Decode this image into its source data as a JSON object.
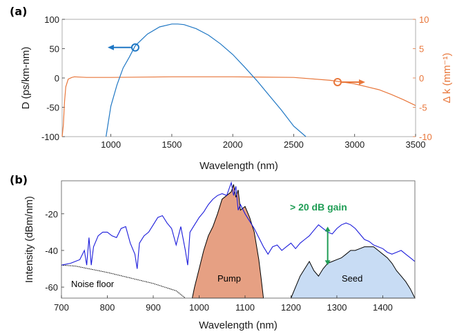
{
  "chart_data": [
    {
      "panel": "(a)",
      "type": "line",
      "xlabel": "Wavelength (nm)",
      "ylabel": "D (ps/km-nm)",
      "ylabel_right": "Δ k (mm⁻¹)",
      "xlim": [
        600,
        3500
      ],
      "ylim": [
        -100,
        100
      ],
      "ylim_right": [
        -10,
        10
      ],
      "xticks": [
        1000,
        1500,
        2000,
        2500,
        3000,
        3500
      ],
      "yticks": [
        -100,
        -50,
        0,
        50,
        100
      ],
      "yticks_right": [
        -10,
        -5,
        0,
        5,
        10
      ],
      "colors": {
        "D": "#1f77c4",
        "dk": "#e8763a"
      },
      "series": [
        {
          "axis": "left",
          "x": [
            960,
            1000,
            1050,
            1100,
            1150,
            1200,
            1300,
            1400,
            1500,
            1550,
            1600,
            1700,
            1800,
            1900,
            2000,
            2100,
            2200,
            2300,
            2400,
            2500,
            2600
          ],
          "y": [
            -100,
            -48,
            -12,
            17,
            35,
            55,
            75,
            87,
            92,
            92,
            91,
            84,
            73,
            58,
            40,
            18,
            -5,
            -30,
            -55,
            -82,
            -100
          ]
        },
        {
          "axis": "right",
          "x": [
            600,
            610,
            620,
            630,
            650,
            680,
            700,
            800,
            1000,
            1500,
            2000,
            2500,
            2800,
            3000,
            3200,
            3300,
            3400,
            3500
          ],
          "y": [
            -10,
            -8,
            -4,
            -1.5,
            -0.2,
            0.1,
            0.2,
            0.1,
            0.1,
            0.2,
            0.2,
            0.1,
            -0.4,
            -1.0,
            -2.0,
            -2.8,
            -3.7,
            -4.7
          ]
        }
      ],
      "markers": [
        {
          "x": 1200,
          "y": 52,
          "axis": "left",
          "arrow": "left"
        },
        {
          "x": 2860,
          "y": -0.7,
          "axis": "right",
          "arrow": "right"
        }
      ]
    },
    {
      "panel": "(b)",
      "type": "area",
      "xlabel": "Wavelength (nm)",
      "ylabel": "Intensity (dBm/nm)",
      "xlim": [
        700,
        1470
      ],
      "ylim": [
        -66,
        -2
      ],
      "xticks": [
        700,
        800,
        900,
        1000,
        1100,
        1200,
        1300,
        1400
      ],
      "yticks": [
        -60,
        -40,
        -20
      ],
      "colors": {
        "output": "#1a1adb",
        "pump": "#e6a083",
        "seed": "#c8dcf4",
        "gain": "#1f9d55"
      },
      "series": [
        {
          "role": "output",
          "x": [
            700,
            720,
            740,
            750,
            755,
            760,
            765,
            770,
            780,
            790,
            800,
            810,
            820,
            830,
            840,
            850,
            860,
            865,
            870,
            880,
            890,
            900,
            910,
            920,
            930,
            940,
            950,
            960,
            970,
            975,
            980,
            990,
            1000,
            1010,
            1020,
            1030,
            1040,
            1050,
            1060,
            1070,
            1075,
            1080,
            1085,
            1090,
            1100,
            1110,
            1120,
            1130,
            1140,
            1150,
            1160,
            1170,
            1180,
            1190,
            1200,
            1210,
            1220,
            1230,
            1240,
            1250,
            1260,
            1270,
            1280,
            1290,
            1300,
            1310,
            1320,
            1330,
            1340,
            1350,
            1360,
            1370,
            1380,
            1390,
            1400,
            1410,
            1420,
            1430,
            1440,
            1450,
            1460,
            1470
          ],
          "y": [
            -48,
            -47,
            -45,
            -40,
            -48,
            -33,
            -48,
            -38,
            -32,
            -30,
            -30,
            -32,
            -33,
            -28,
            -27,
            -36,
            -42,
            -50,
            -36,
            -32,
            -30,
            -26,
            -22,
            -21,
            -25,
            -28,
            -37,
            -27,
            -40,
            -48,
            -30,
            -26,
            -22,
            -19,
            -15,
            -12,
            -10,
            -9,
            -10,
            -3,
            -10,
            -5,
            -18,
            -15,
            -20,
            -24,
            -28,
            -33,
            -38,
            -42,
            -38,
            -37,
            -40,
            -38,
            -36,
            -39,
            -36,
            -34,
            -32,
            -29,
            -26,
            -28,
            -30,
            -31,
            -28,
            -26,
            -25,
            -26,
            -28,
            -31,
            -34,
            -35,
            -37,
            -38,
            -39,
            -41,
            -42,
            -41,
            -40,
            -42,
            -44,
            -46
          ]
        },
        {
          "role": "noise_floor",
          "x": [
            700,
            730,
            760,
            800,
            850,
            900,
            950,
            970
          ],
          "y": [
            -48,
            -48.5,
            -50,
            -52,
            -55,
            -58,
            -62,
            -66
          ]
        },
        {
          "role": "pump",
          "x": [
            985,
            990,
            1000,
            1010,
            1020,
            1030,
            1040,
            1050,
            1060,
            1070,
            1075,
            1080,
            1085,
            1090,
            1100,
            1110,
            1120,
            1130,
            1135,
            1140
          ],
          "y": [
            -66,
            -60,
            -50,
            -40,
            -32,
            -27,
            -20,
            -12,
            -10,
            -8,
            -4,
            -11,
            -7,
            -18,
            -16,
            -22,
            -30,
            -45,
            -55,
            -66
          ]
        },
        {
          "role": "seed",
          "x": [
            1200,
            1210,
            1220,
            1230,
            1240,
            1250,
            1260,
            1270,
            1280,
            1290,
            1300,
            1310,
            1320,
            1330,
            1340,
            1350,
            1360,
            1370,
            1380,
            1390,
            1400,
            1410,
            1420,
            1430,
            1440,
            1450,
            1460,
            1470
          ],
          "y": [
            -66,
            -60,
            -54,
            -50,
            -46,
            -51,
            -54,
            -50,
            -47,
            -46,
            -45,
            -44,
            -42,
            -40,
            -40,
            -39,
            -38,
            -38,
            -38,
            -40,
            -42,
            -44,
            -47,
            -51,
            -54,
            -57,
            -61,
            -66
          ]
        }
      ],
      "annotations": {
        "gain": "> 20 dB gain",
        "noise": "Noise floor",
        "pump": "Pump",
        "seed": "Seed"
      },
      "gain_arrow": {
        "x": 1280,
        "y_top": -27,
        "y_bottom": -48
      }
    }
  ]
}
